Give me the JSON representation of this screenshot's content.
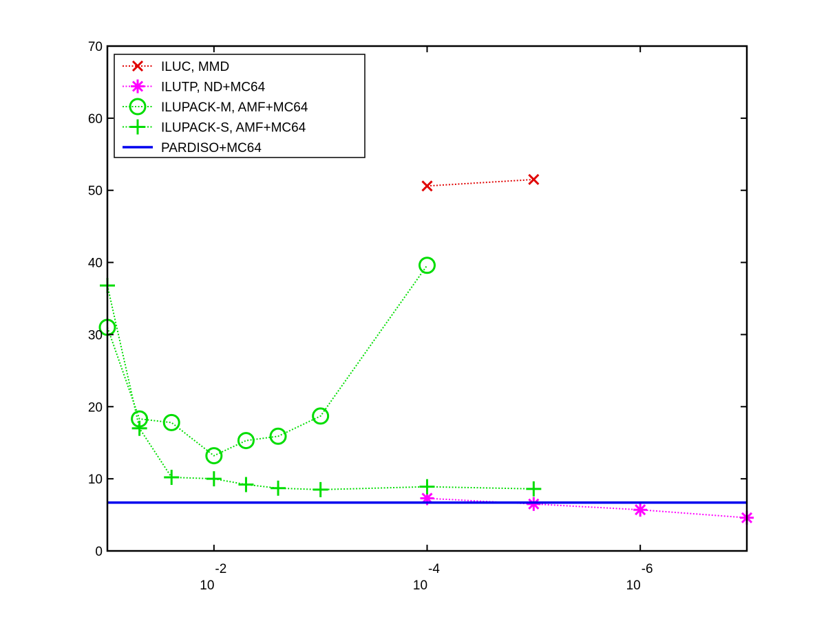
{
  "chart_data": {
    "type": "line",
    "xscale": "log",
    "xlim": [
      0.1,
      1e-07
    ],
    "ylim": [
      0,
      70
    ],
    "grid": false,
    "legend_position": "top-left",
    "xlabel": "",
    "ylabel": "",
    "yticks": [
      {
        "value": 0,
        "label": "0"
      },
      {
        "value": 10,
        "label": "10"
      },
      {
        "value": 20,
        "label": "20"
      },
      {
        "value": 30,
        "label": "30"
      },
      {
        "value": 40,
        "label": "40"
      },
      {
        "value": 50,
        "label": "50"
      },
      {
        "value": 60,
        "label": "60"
      },
      {
        "value": 70,
        "label": "70"
      }
    ],
    "xticks": [
      {
        "value": 0.01,
        "base": "10",
        "exponent": "-2"
      },
      {
        "value": 0.0001,
        "base": "10",
        "exponent": "-4"
      },
      {
        "value": 1e-06,
        "base": "10",
        "exponent": "-6"
      }
    ],
    "series": [
      {
        "name": "ILUC, MMD",
        "color": "#e00000",
        "marker": "x",
        "line": "dotted",
        "points": [
          [
            0.0001,
            50.6
          ],
          [
            1e-05,
            51.5
          ]
        ]
      },
      {
        "name": "ILUTP,  ND+MC64",
        "color": "#ff00ff",
        "marker": "star",
        "line": "dotted",
        "points": [
          [
            0.0001,
            7.3
          ],
          [
            1e-05,
            6.5
          ],
          [
            1e-06,
            5.7
          ],
          [
            1e-07,
            4.6
          ]
        ]
      },
      {
        "name": "ILUPACK-M, AMF+MC64",
        "color": "#00dd00",
        "marker": "circle",
        "line": "dotted",
        "points": [
          [
            0.1,
            31.0
          ],
          [
            0.05,
            18.3
          ],
          [
            0.025,
            17.8
          ],
          [
            0.01,
            13.2
          ],
          [
            0.005,
            15.3
          ],
          [
            0.0025,
            15.9
          ],
          [
            0.001,
            18.7
          ],
          [
            0.0001,
            39.6
          ]
        ]
      },
      {
        "name": "ILUPACK-S, AMF+MC64",
        "color": "#00dd00",
        "marker": "plus",
        "line": "dotted",
        "points": [
          [
            0.1,
            36.8
          ],
          [
            0.05,
            17.0
          ],
          [
            0.025,
            10.2
          ],
          [
            0.01,
            10.0
          ],
          [
            0.005,
            9.2
          ],
          [
            0.0025,
            8.7
          ],
          [
            0.001,
            8.5
          ],
          [
            0.0001,
            8.9
          ],
          [
            1e-05,
            8.6
          ]
        ]
      },
      {
        "name": "PARDISO+MC64",
        "color": "#0000ee",
        "marker": "none",
        "line": "solid",
        "points": [
          [
            0.1,
            6.7
          ],
          [
            1e-07,
            6.7
          ]
        ]
      }
    ]
  }
}
